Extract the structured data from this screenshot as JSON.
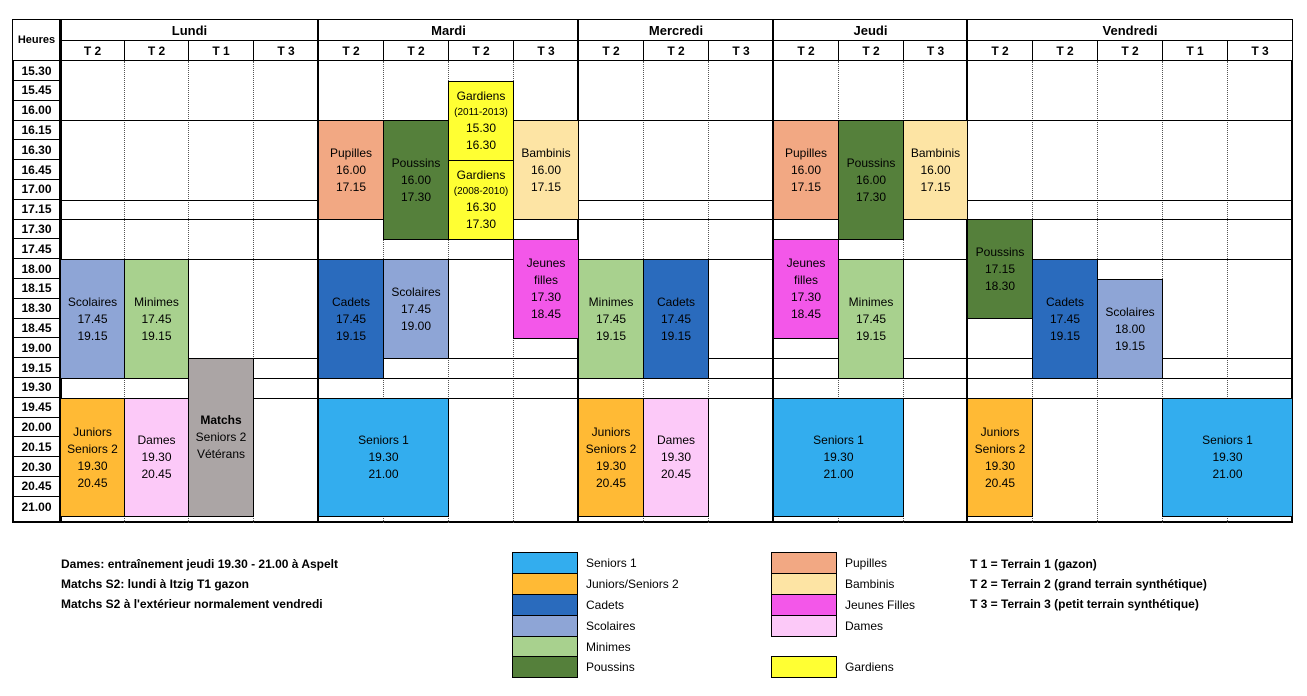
{
  "header": {
    "heures": "Heures"
  },
  "days": [
    {
      "name": "Lundi",
      "cols": [
        "T 2",
        "T 2",
        "T 1",
        "T 3"
      ]
    },
    {
      "name": "Mardi",
      "cols": [
        "T 2",
        "T 2",
        "T 2",
        "T 3"
      ]
    },
    {
      "name": "Mercredi",
      "cols": [
        "T 2",
        "T 2",
        "T 3"
      ]
    },
    {
      "name": "Jeudi",
      "cols": [
        "T 2",
        "T 2",
        "T 3"
      ]
    },
    {
      "name": "Vendredi",
      "cols": [
        "T 2",
        "T 2",
        "T 2",
        "T 1",
        "T 3"
      ]
    }
  ],
  "times": [
    "15.30",
    "15.45",
    "16.00",
    "16.15",
    "16.30",
    "16.45",
    "17.00",
    "17.15",
    "17.30",
    "17.45",
    "18.00",
    "18.15",
    "18.30",
    "18.45",
    "19.00",
    "19.15",
    "19.30",
    "19.45",
    "20.00",
    "20.15",
    "20.30",
    "20.45",
    "21.00"
  ],
  "colors": {
    "seniors1": "#33adee",
    "juniors": "#ffba35",
    "cadets": "#2a6bbd",
    "scolaires": "#8ea5d6",
    "minimes": "#a8d18e",
    "poussins": "#55803b",
    "pupilles": "#f2a883",
    "bambinis": "#fde4a4",
    "jeunesfilles": "#f357e9",
    "dames": "#fcc9f8",
    "gardiens": "#ffff33",
    "matchs": "#aba5a5"
  },
  "blocks": [
    {
      "id": "lun-scolaires",
      "lines": [
        "Scolaires",
        "17.45",
        "19.15"
      ],
      "color": "scolaires"
    },
    {
      "id": "lun-minimes",
      "lines": [
        "Minimes",
        "17.45",
        "19.15"
      ],
      "color": "minimes"
    },
    {
      "id": "lun-matchs",
      "lines": [
        "Matchs",
        "Seniors 2",
        "Vétérans"
      ],
      "color": "matchs",
      "boldFirst": true
    },
    {
      "id": "lun-juniors",
      "lines": [
        "Juniors",
        "Seniors 2",
        "19.30",
        "20.45"
      ],
      "color": "juniors"
    },
    {
      "id": "lun-dames",
      "lines": [
        "Dames",
        "19.30",
        "20.45"
      ],
      "color": "dames"
    },
    {
      "id": "mar-pupilles",
      "lines": [
        "Pupilles",
        "16.00",
        "17.15"
      ],
      "color": "pupilles"
    },
    {
      "id": "mar-poussins",
      "lines": [
        "Poussins",
        "16.00",
        "17.30"
      ],
      "color": "poussins"
    },
    {
      "id": "mar-gardiens1",
      "lines": [
        "Gardiens",
        "(2011-2013)",
        "15.30",
        "16.30"
      ],
      "color": "gardiens",
      "smallSecond": true
    },
    {
      "id": "mar-gardiens2",
      "lines": [
        "Gardiens",
        "(2008-2010)",
        "16.30",
        "17.30"
      ],
      "color": "gardiens",
      "smallSecond": true
    },
    {
      "id": "mar-bambinis",
      "lines": [
        "Bambinis",
        "16.00",
        "17.15"
      ],
      "color": "bambinis"
    },
    {
      "id": "mar-jeunesfilles",
      "lines": [
        "Jeunes",
        "filles",
        "17.30",
        "18.45"
      ],
      "color": "jeunesfilles"
    },
    {
      "id": "mar-cadets",
      "lines": [
        "Cadets",
        "17.45",
        "19.15"
      ],
      "color": "cadets"
    },
    {
      "id": "mar-scolaires",
      "lines": [
        "Scolaires",
        "17.45",
        "19.00"
      ],
      "color": "scolaires"
    },
    {
      "id": "mar-seniors1",
      "lines": [
        "Seniors 1",
        "19.30",
        "21.00"
      ],
      "color": "seniors1"
    },
    {
      "id": "mer-minimes",
      "lines": [
        "Minimes",
        "17.45",
        "19.15"
      ],
      "color": "minimes"
    },
    {
      "id": "mer-cadets",
      "lines": [
        "Cadets",
        "17.45",
        "19.15"
      ],
      "color": "cadets"
    },
    {
      "id": "mer-juniors",
      "lines": [
        "Juniors",
        "Seniors 2",
        "19.30",
        "20.45"
      ],
      "color": "juniors"
    },
    {
      "id": "mer-dames",
      "lines": [
        "Dames",
        "19.30",
        "20.45"
      ],
      "color": "dames"
    },
    {
      "id": "jeu-pupilles",
      "lines": [
        "Pupilles",
        "16.00",
        "17.15"
      ],
      "color": "pupilles"
    },
    {
      "id": "jeu-poussins",
      "lines": [
        "Poussins",
        "16.00",
        "17.30"
      ],
      "color": "poussins"
    },
    {
      "id": "jeu-bambinis",
      "lines": [
        "Bambinis",
        "16.00",
        "17.15"
      ],
      "color": "bambinis"
    },
    {
      "id": "jeu-jeunesfilles",
      "lines": [
        "Jeunes",
        "filles",
        "17.30",
        "18.45"
      ],
      "color": "jeunesfilles"
    },
    {
      "id": "jeu-minimes",
      "lines": [
        "Minimes",
        "17.45",
        "19.15"
      ],
      "color": "minimes"
    },
    {
      "id": "jeu-seniors1",
      "lines": [
        "Seniors 1",
        "19.30",
        "21.00"
      ],
      "color": "seniors1"
    },
    {
      "id": "ven-poussins",
      "lines": [
        "Poussins",
        "17.15",
        "18.30"
      ],
      "color": "poussins"
    },
    {
      "id": "ven-cadets",
      "lines": [
        "Cadets",
        "17.45",
        "19.15"
      ],
      "color": "cadets"
    },
    {
      "id": "ven-scolaires",
      "lines": [
        "Scolaires",
        "18.00",
        "19.15"
      ],
      "color": "scolaires"
    },
    {
      "id": "ven-juniors",
      "lines": [
        "Juniors",
        "Seniors 2",
        "19.30",
        "20.45"
      ],
      "color": "juniors"
    },
    {
      "id": "ven-seniors1",
      "lines": [
        "Seniors 1",
        "19.30",
        "21.00"
      ],
      "color": "seniors1"
    }
  ],
  "notes": [
    "Dames: entraînement jeudi 19.30 - 21.00 à Aspelt",
    "Matchs S2: lundi à Itzig T1 gazon",
    "Matchs S2 à l'extérieur normalement vendredi"
  ],
  "legend": [
    {
      "label": "Seniors 1",
      "color": "seniors1"
    },
    {
      "label": "Juniors/Seniors 2",
      "color": "juniors"
    },
    {
      "label": "Cadets",
      "color": "cadets"
    },
    {
      "label": "Scolaires",
      "color": "scolaires"
    },
    {
      "label": "Minimes",
      "color": "minimes"
    },
    {
      "label": "Poussins",
      "color": "poussins"
    },
    {
      "label": "Pupilles",
      "color": "pupilles"
    },
    {
      "label": "Bambinis",
      "color": "bambinis"
    },
    {
      "label": "Jeunes Filles",
      "color": "jeunesfilles"
    },
    {
      "label": "Dames",
      "color": "dames"
    },
    {
      "label": "Gardiens",
      "color": "gardiens"
    }
  ],
  "terrains": [
    "T 1 = Terrain 1 (gazon)",
    "T 2 = Terrain 2 (grand terrain synthétique)",
    "T 3 = Terrain 3 (petit terrain synthétique)"
  ]
}
